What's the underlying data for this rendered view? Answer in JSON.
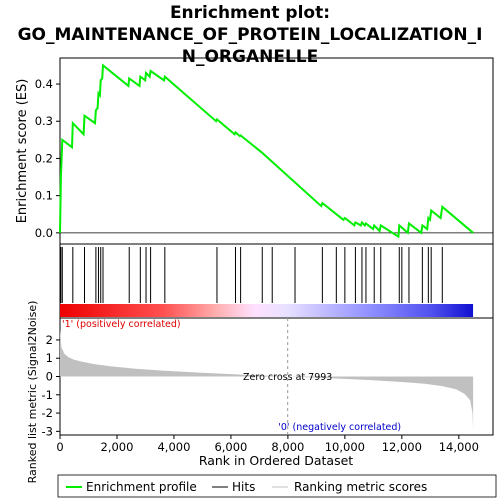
{
  "title_lines": [
    "Enrichment plot:",
    "GO_MAINTENANCE_OF_PROTEIN_LOCALIZATION_I",
    "N_ORGANELLE"
  ],
  "chart_data": {
    "type": "line",
    "title": "Enrichment plot: GO_MAINTENANCE_OF_PROTEIN_LOCALIZATION_IN_ORGANELLE",
    "xlabel": "Rank in Ordered Dataset",
    "xlim": [
      0,
      15200
    ],
    "x_ticks": [
      0,
      2000,
      4000,
      6000,
      8000,
      10000,
      12000,
      14000
    ],
    "x_tick_labels": [
      "0",
      "2,000",
      "4,000",
      "6,000",
      "8,000",
      "10,000",
      "12,000",
      "14,000"
    ],
    "es_panel": {
      "ylabel": "Enrichment score (ES)",
      "ylim": [
        -0.03,
        0.47
      ],
      "y_ticks": [
        0.0,
        0.1,
        0.2,
        0.3,
        0.4
      ],
      "y_tick_labels": [
        "0.0",
        "0.1",
        "0.2",
        "0.3",
        "0.4"
      ],
      "series": [
        {
          "name": "Enrichment profile",
          "color": "#00ee00",
          "x": [
            0,
            30,
            80,
            420,
            450,
            830,
            860,
            1230,
            1260,
            1320,
            1350,
            1400,
            1430,
            1480,
            1510,
            2400,
            2430,
            2790,
            2820,
            2990,
            3020,
            3150,
            3180,
            3650,
            3680,
            5480,
            5510,
            6130,
            6160,
            6310,
            6340,
            7050,
            7100,
            9170,
            9210,
            9950,
            10000,
            10330,
            10370,
            10560,
            10600,
            10700,
            10740,
            10990,
            11030,
            11220,
            11260,
            11880,
            11910,
            12210,
            12250,
            12680,
            12720,
            12890,
            12930,
            12990,
            13030,
            13360,
            13420,
            14500
          ],
          "y": [
            0.0,
            0.15,
            0.25,
            0.23,
            0.295,
            0.265,
            0.315,
            0.295,
            0.33,
            0.335,
            0.375,
            0.37,
            0.41,
            0.415,
            0.45,
            0.395,
            0.415,
            0.395,
            0.42,
            0.41,
            0.43,
            0.42,
            0.435,
            0.41,
            0.42,
            0.3,
            0.305,
            0.265,
            0.27,
            0.26,
            0.262,
            0.218,
            0.215,
            0.072,
            0.08,
            0.035,
            0.04,
            0.02,
            0.028,
            0.02,
            0.028,
            0.02,
            0.025,
            0.01,
            0.02,
            0.005,
            0.02,
            -0.01,
            0.02,
            0.0,
            0.025,
            0.0,
            0.02,
            0.01,
            0.04,
            0.035,
            0.06,
            0.04,
            0.07,
            0.0
          ]
        }
      ]
    },
    "hits": [
      30,
      80,
      450,
      860,
      1260,
      1350,
      1430,
      1510,
      2430,
      2820,
      3020,
      3180,
      3680,
      5510,
      6160,
      6340,
      7100,
      7450,
      8250,
      9210,
      9700,
      10000,
      10370,
      10600,
      10740,
      11030,
      11260,
      11910,
      12000,
      12250,
      12720,
      12930,
      13030,
      13420
    ],
    "rank_panel": {
      "ylabel": "Ranked list metric (Signal2Noise)",
      "ylim": [
        -3.2,
        3.2
      ],
      "y_ticks": [
        -3,
        -2,
        -1,
        0,
        1,
        2
      ],
      "y_tick_labels": [
        "-3",
        "-2",
        "-1",
        "0",
        "1",
        "2"
      ],
      "x": [
        0,
        50,
        150,
        300,
        500,
        800,
        1200,
        1800,
        2600,
        3600,
        4800,
        6000,
        7000,
        7993,
        9000,
        10000,
        11000,
        12000,
        12800,
        13400,
        13900,
        14200,
        14400,
        14480,
        14500
      ],
      "y": [
        2.6,
        1.6,
        1.25,
        1.05,
        0.92,
        0.8,
        0.68,
        0.55,
        0.43,
        0.32,
        0.22,
        0.13,
        0.06,
        0.0,
        -0.06,
        -0.13,
        -0.21,
        -0.3,
        -0.4,
        -0.52,
        -0.7,
        -0.95,
        -1.3,
        -2.0,
        -2.9
      ],
      "zero_cross_label": "Zero cross at 7993",
      "zero_cross": 7993,
      "pos_label": "'1' (positively correlated)",
      "neg_label": "'0' (negatively correlated)"
    },
    "legend": [
      {
        "label": "Enrichment profile",
        "color": "#00ee00"
      },
      {
        "label": "Hits",
        "color": "#000000"
      },
      {
        "label": "Ranking metric scores",
        "color": "#c0c0c0"
      }
    ],
    "legend_position": "bottom",
    "grid": false
  }
}
